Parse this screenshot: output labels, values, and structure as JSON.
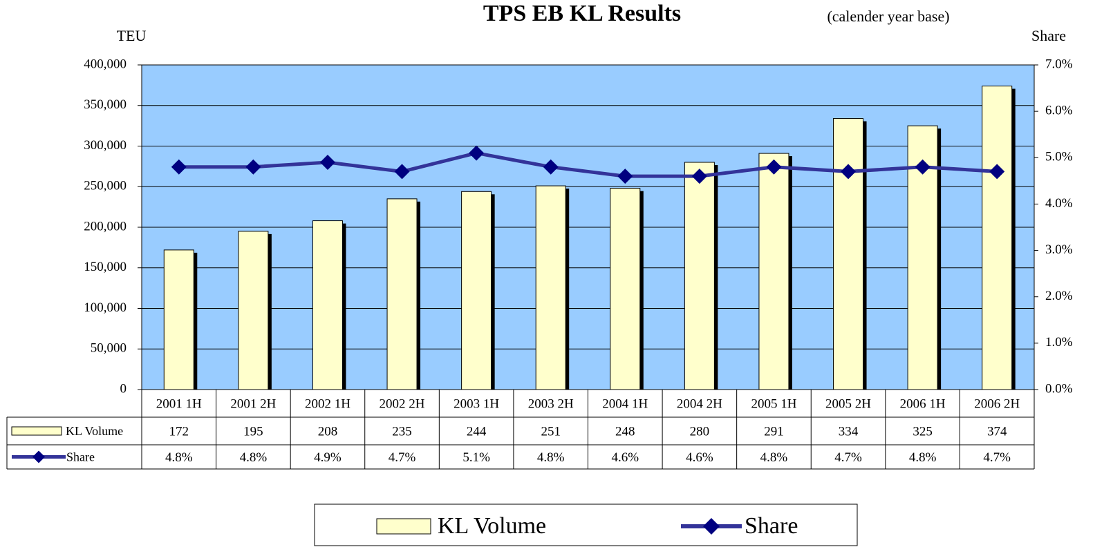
{
  "chart_data": {
    "type": "bar-line",
    "title": "TPS EB KL Results",
    "subtitle": "(calender year base)",
    "ylabel": "TEU",
    "y2label": "Share",
    "categories": [
      "2001 1H",
      "2001 2H",
      "2002 1H",
      "2002 2H",
      "2003 1H",
      "2003 2H",
      "2004 1H",
      "2004 2H",
      "2005 1H",
      "2005 2H",
      "2006 1H",
      "2006 2H"
    ],
    "series": [
      {
        "name": "KL Volume",
        "type": "bar",
        "color": "#ffffcc",
        "values": [
          172000,
          195000,
          208000,
          235000,
          244000,
          251000,
          248000,
          280000,
          291000,
          334000,
          325000,
          374000
        ],
        "value_labels": [
          "172",
          "195",
          "208",
          "235",
          "244",
          "251",
          "248",
          "280",
          "291",
          "334",
          "325",
          "374"
        ]
      },
      {
        "name": "Share",
        "type": "line",
        "axis": "y2",
        "color": "#333399",
        "values": [
          4.8,
          4.8,
          4.9,
          4.7,
          5.1,
          4.8,
          4.6,
          4.6,
          4.8,
          4.7,
          4.8,
          4.7
        ],
        "value_labels": [
          "4.8%",
          "4.8%",
          "4.9%",
          "4.7%",
          "5.1%",
          "4.8%",
          "4.6%",
          "4.6%",
          "4.8%",
          "4.7%",
          "4.8%",
          "4.7%"
        ]
      }
    ],
    "ylim": [
      0,
      400000
    ],
    "yticks": [
      {
        "value": 0,
        "label": "0"
      },
      {
        "value": 50000,
        "label": "50,000"
      },
      {
        "value": 100000,
        "label": "100,000"
      },
      {
        "value": 150000,
        "label": "150,000"
      },
      {
        "value": 200000,
        "label": "200,000"
      },
      {
        "value": 250000,
        "label": "250,000"
      },
      {
        "value": 300000,
        "label": "300,000"
      },
      {
        "value": 350000,
        "label": "350,000"
      },
      {
        "value": 400000,
        "label": "400,000"
      }
    ],
    "y2lim": [
      0,
      7
    ],
    "y2ticks": [
      {
        "value": 0,
        "label": "0.0%"
      },
      {
        "value": 1,
        "label": "1.0%"
      },
      {
        "value": 2,
        "label": "2.0%"
      },
      {
        "value": 3,
        "label": "3.0%"
      },
      {
        "value": 4,
        "label": "4.0%"
      },
      {
        "value": 5,
        "label": "5.0%"
      },
      {
        "value": 6,
        "label": "6.0%"
      },
      {
        "value": 7,
        "label": "7.0%"
      }
    ],
    "grid": true,
    "background": "#99ccff"
  }
}
